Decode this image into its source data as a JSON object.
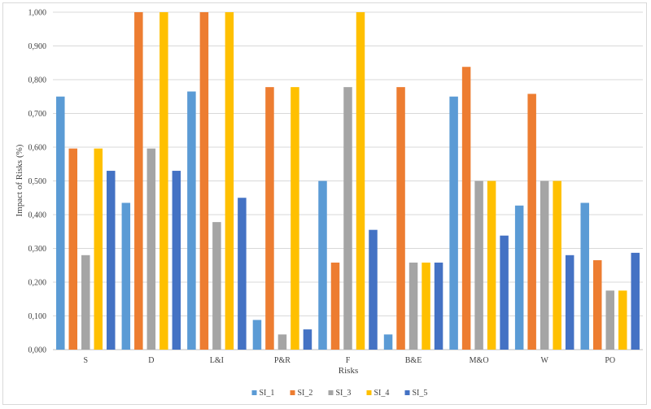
{
  "chart_data": {
    "type": "bar",
    "title": "",
    "xlabel": "Risks",
    "ylabel": "Impact of Risks (%)",
    "ylim": [
      0,
      1
    ],
    "yticks": [
      "0,000",
      "0,100",
      "0,200",
      "0,300",
      "0,400",
      "0,500",
      "0,600",
      "0,700",
      "0,800",
      "0,900",
      "1,000"
    ],
    "grid": true,
    "legend_position": "bottom",
    "categories": [
      "S",
      "D",
      "L&I",
      "P&R",
      "F",
      "B&E",
      "M&O",
      "W",
      "PO"
    ],
    "series": [
      {
        "name": "SI_1",
        "color": "#5b9bd5",
        "values": [
          0.75,
          0.435,
          0.765,
          0.088,
          0.5,
          0.045,
          0.75,
          0.427,
          0.435
        ]
      },
      {
        "name": "SI_2",
        "color": "#ed7d31",
        "values": [
          0.596,
          1.0,
          1.0,
          0.778,
          0.258,
          0.778,
          0.838,
          0.758,
          0.265
        ]
      },
      {
        "name": "SI_3",
        "color": "#a5a5a5",
        "values": [
          0.28,
          0.596,
          0.378,
          0.045,
          0.778,
          0.258,
          0.5,
          0.5,
          0.175
        ]
      },
      {
        "name": "SI_4",
        "color": "#ffc000",
        "values": [
          0.596,
          1.0,
          1.0,
          0.778,
          1.0,
          0.258,
          0.5,
          0.5,
          0.175
        ]
      },
      {
        "name": "SI_5",
        "color": "#4472c4",
        "values": [
          0.53,
          0.53,
          0.45,
          0.06,
          0.355,
          0.258,
          0.338,
          0.28,
          0.287
        ]
      }
    ]
  }
}
